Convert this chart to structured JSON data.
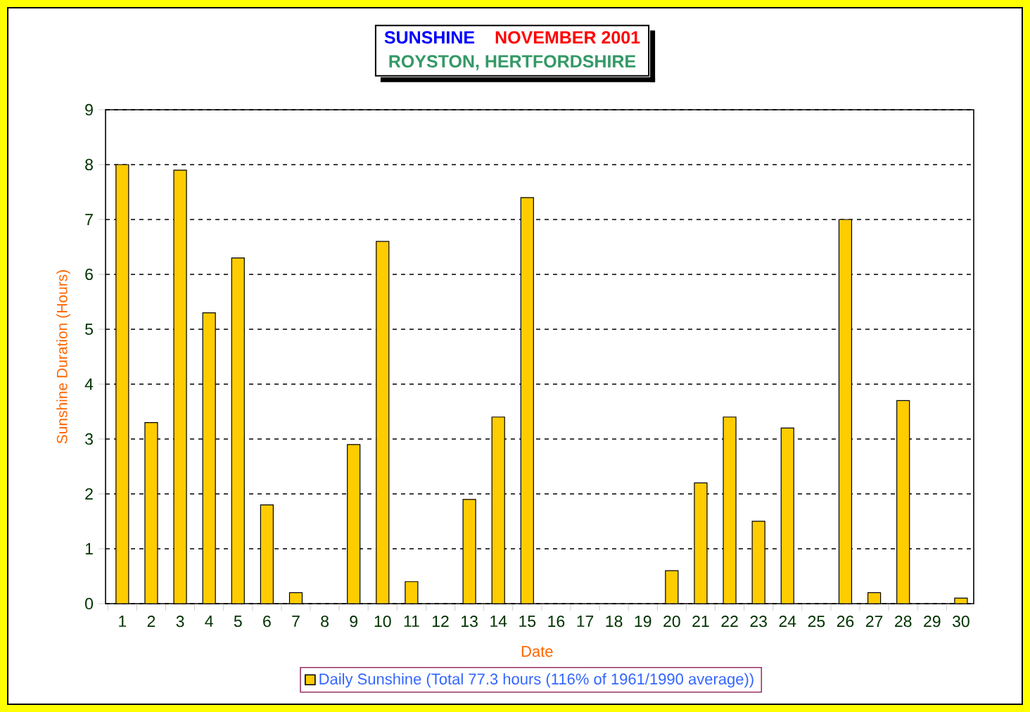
{
  "chart_data": {
    "type": "bar",
    "title": "SUNSHINE",
    "subtitle": "NOVEMBER 2001",
    "annotations": [
      "ROYSTON, HERTFORDSHIRE"
    ],
    "xlabel": "Date",
    "ylabel": "Sunshine Duration (Hours)",
    "categories": [
      "1",
      "2",
      "3",
      "4",
      "5",
      "6",
      "7",
      "8",
      "9",
      "10",
      "11",
      "12",
      "13",
      "14",
      "15",
      "16",
      "17",
      "18",
      "19",
      "20",
      "21",
      "22",
      "23",
      "24",
      "25",
      "26",
      "27",
      "28",
      "29",
      "30"
    ],
    "series": [
      {
        "name": "Daily Sunshine (Total 77.3 hours (116% of 1961/1990 average))",
        "color": "#ffcc00",
        "values": [
          8.0,
          3.3,
          7.9,
          5.3,
          6.3,
          1.8,
          0.2,
          0,
          2.9,
          6.6,
          0.4,
          0,
          1.9,
          3.4,
          7.4,
          0,
          0,
          0,
          0,
          0.6,
          2.2,
          3.4,
          1.5,
          3.2,
          0,
          7.0,
          0.2,
          3.7,
          0,
          0.1
        ]
      }
    ],
    "ylim": [
      0,
      9
    ],
    "yticks": [
      0,
      1,
      2,
      3,
      4,
      5,
      6,
      7,
      8,
      9
    ],
    "grid": "y",
    "legend": "bottom"
  }
}
